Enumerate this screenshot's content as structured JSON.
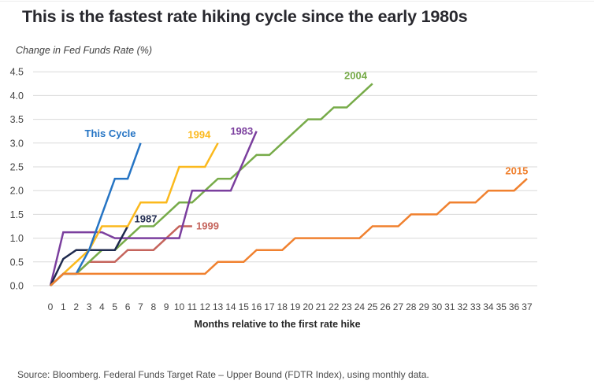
{
  "header": {
    "title": "This is the fastest rate hiking cycle since the early 1980s",
    "subtitle": "Change in Fed Funds Rate (%)"
  },
  "footer": {
    "source": "Source: Bloomberg. Federal Funds Target Rate – Upper Bound (FDTR Index), using monthly data."
  },
  "chart_data": {
    "type": "line",
    "title": "This is the fastest rate hiking cycle since the early 1980s",
    "subtitle": "Change in Fed Funds Rate (%)",
    "xlabel": "Months relative to the first rate hike",
    "ylabel": "Change in Fed Funds Rate (%)",
    "xlim": [
      0,
      37
    ],
    "ylim": [
      0.0,
      4.5
    ],
    "x_ticks": [
      0,
      1,
      2,
      3,
      4,
      5,
      6,
      7,
      8,
      9,
      10,
      11,
      12,
      13,
      14,
      15,
      16,
      17,
      18,
      19,
      20,
      21,
      22,
      23,
      24,
      25,
      26,
      27,
      28,
      29,
      30,
      31,
      32,
      33,
      34,
      35,
      36,
      37
    ],
    "y_ticks": [
      0.0,
      0.5,
      1.0,
      1.5,
      2.0,
      2.5,
      3.0,
      3.5,
      4.0,
      4.5
    ],
    "grid": "horizontal",
    "grid_color": "#d9d9d9",
    "legend_position": "inline-labels",
    "series": [
      {
        "name": "1999",
        "color": "#c5645c",
        "values": [
          0,
          0.25,
          0.25,
          0.5,
          0.5,
          0.5,
          0.75,
          0.75,
          0.75,
          1.0,
          1.25,
          1.25
        ],
        "label_pos": {
          "x": 12.2,
          "y": 1.26
        }
      },
      {
        "name": "2004",
        "color": "#77ab49",
        "values": [
          0,
          0.25,
          0.25,
          0.5,
          0.75,
          0.75,
          1.0,
          1.25,
          1.25,
          1.5,
          1.75,
          1.75,
          2.0,
          2.25,
          2.25,
          2.5,
          2.75,
          2.75,
          3.0,
          3.25,
          3.5,
          3.5,
          3.75,
          3.75,
          4.0,
          4.25
        ],
        "label_pos": {
          "x": 23.7,
          "y": 4.42
        }
      },
      {
        "name": "1983",
        "color": "#7b3f9e",
        "values": [
          0,
          1.125,
          1.125,
          1.125,
          1.125,
          1.0,
          1.0,
          1.0,
          1.0,
          1.0,
          1.0,
          2.0,
          2.0,
          2.0,
          2.0,
          2.625,
          3.25
        ],
        "label_pos": {
          "x": 14.85,
          "y": 3.25
        }
      },
      {
        "name": "1987",
        "color": "#1f2a4e",
        "values": [
          0,
          0.5625,
          0.75,
          0.75,
          0.75,
          0.75,
          1.25
        ],
        "label_pos": {
          "x": 7.4,
          "y": 1.41
        }
      },
      {
        "name": "1994",
        "color": "#fbb91d",
        "values": [
          0,
          0.25,
          0.5,
          0.75,
          1.25,
          1.25,
          1.25,
          1.75,
          1.75,
          1.75,
          2.5,
          2.5,
          2.5,
          3.0
        ],
        "label_pos": {
          "x": 11.55,
          "y": 3.18
        }
      },
      {
        "name": "This Cycle",
        "color": "#2574c4",
        "values": [
          0,
          0.25,
          0.25,
          0.75,
          1.5,
          2.25,
          2.25,
          3.0
        ],
        "label_pos": {
          "x": 4.65,
          "y": 3.2
        }
      },
      {
        "name": "2015",
        "color": "#f0812f",
        "values": [
          0,
          0.25,
          0.25,
          0.25,
          0.25,
          0.25,
          0.25,
          0.25,
          0.25,
          0.25,
          0.25,
          0.25,
          0.25,
          0.5,
          0.5,
          0.5,
          0.75,
          0.75,
          0.75,
          1.0,
          1.0,
          1.0,
          1.0,
          1.0,
          1.0,
          1.25,
          1.25,
          1.25,
          1.5,
          1.5,
          1.5,
          1.75,
          1.75,
          1.75,
          2.0,
          2.0,
          2.0,
          2.25
        ],
        "label_pos": {
          "x": 36.2,
          "y": 2.42
        }
      }
    ],
    "source": "Source: Bloomberg. Federal Funds Target Rate – Upper Bound (FDTR Index), using monthly data."
  }
}
